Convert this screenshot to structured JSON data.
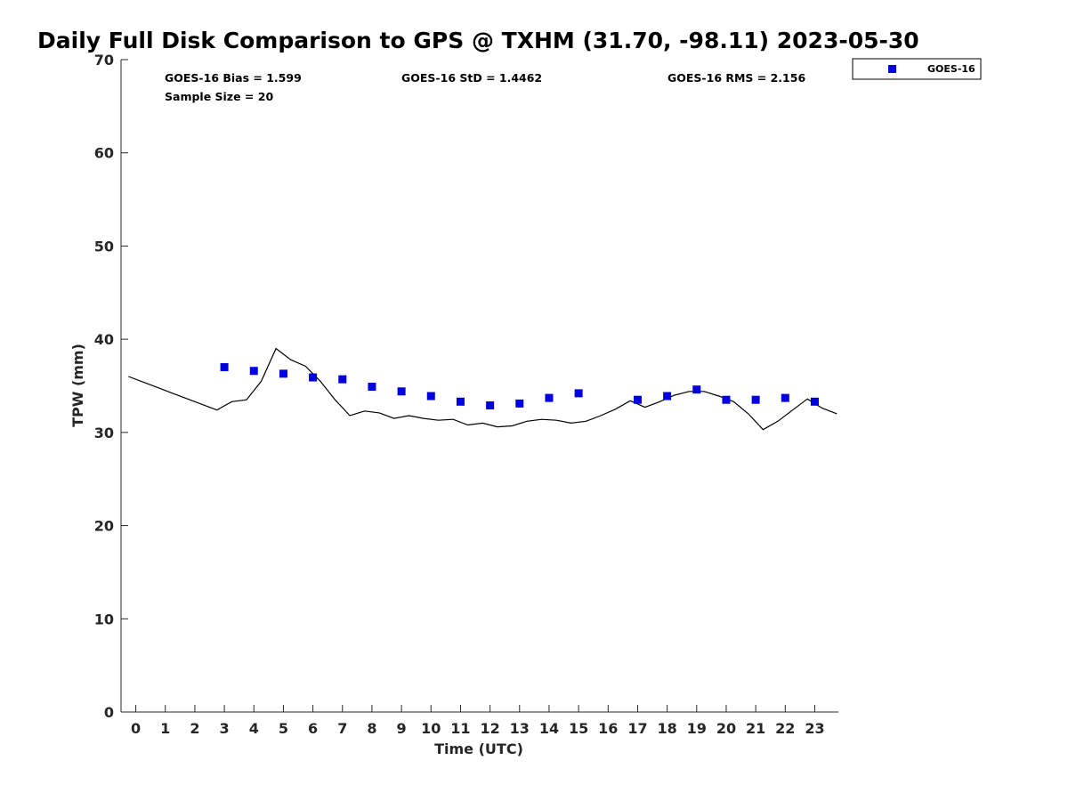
{
  "chart_data": {
    "type": "scatter",
    "title": "Daily Full Disk Comparison to GPS @ TXHM (31.70, -98.11) 2023-05-30",
    "xlabel": "Time (UTC)",
    "ylabel": "TPW (mm)",
    "xlim": [
      -0.5,
      23.8
    ],
    "ylim": [
      0,
      70
    ],
    "x_ticks": [
      0,
      1,
      2,
      3,
      4,
      5,
      6,
      7,
      8,
      9,
      10,
      11,
      12,
      13,
      14,
      15,
      16,
      17,
      18,
      19,
      20,
      21,
      22,
      23
    ],
    "y_ticks": [
      0,
      10,
      20,
      30,
      40,
      50,
      60,
      70
    ],
    "grid": false,
    "legend_position": "top-right",
    "stats": {
      "bias": "GOES-16 Bias = 1.599",
      "std": "GOES-16 StD = 1.4462",
      "rms": "GOES-16 RMS = 2.156",
      "sample_size": "Sample Size = 20"
    },
    "series": [
      {
        "name": "GOES-16",
        "kind": "scatter",
        "color": "#0000dd",
        "marker": "square",
        "x": [
          3,
          4,
          5,
          6,
          7,
          8,
          9,
          10,
          11,
          12,
          13,
          14,
          15,
          17,
          18,
          19,
          20,
          21,
          22,
          23
        ],
        "y": [
          37.0,
          36.6,
          36.3,
          35.9,
          35.7,
          34.9,
          34.4,
          33.9,
          33.3,
          32.9,
          33.1,
          33.7,
          34.2,
          33.5,
          33.9,
          34.6,
          33.5,
          33.5,
          33.7,
          33.3
        ]
      },
      {
        "kind": "line",
        "color": "#000000",
        "x": [
          -0.25,
          0.25,
          0.75,
          1.25,
          1.75,
          2.25,
          2.75,
          3.25,
          3.75,
          4.25,
          4.75,
          5.25,
          5.75,
          6.25,
          6.75,
          7.25,
          7.75,
          8.25,
          8.75,
          9.25,
          9.75,
          10.25,
          10.75,
          11.25,
          11.75,
          12.25,
          12.75,
          13.25,
          13.75,
          14.25,
          14.75,
          15.25,
          15.75,
          16.25,
          16.75,
          17.25,
          17.75,
          18.25,
          18.75,
          19.25,
          19.75,
          20.25,
          20.75,
          21.25,
          21.75,
          22.25,
          22.75,
          23.25,
          23.75
        ],
        "y": [
          36.0,
          35.4,
          34.8,
          34.2,
          33.6,
          33.0,
          32.4,
          33.3,
          33.5,
          35.5,
          39.0,
          37.8,
          37.1,
          35.5,
          33.5,
          31.8,
          32.3,
          32.1,
          31.5,
          31.8,
          31.5,
          31.3,
          31.4,
          30.8,
          31.0,
          30.6,
          30.7,
          31.2,
          31.4,
          31.3,
          31.0,
          31.2,
          31.8,
          32.5,
          33.4,
          32.7,
          33.3,
          34.0,
          34.4,
          34.4,
          33.9,
          33.3,
          32.0,
          30.3,
          31.2,
          32.4,
          33.6,
          32.6,
          32.0
        ]
      }
    ]
  }
}
